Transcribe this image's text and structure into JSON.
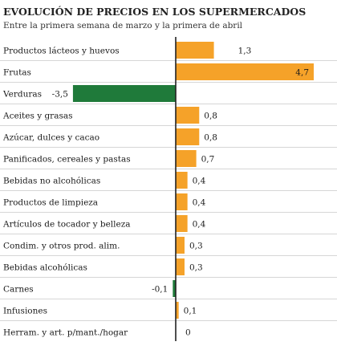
{
  "chart_data": {
    "type": "bar",
    "orientation": "horizontal",
    "title": "EVOLUCIÓN DE PRECIOS EN LOS SUPERMERCADOS",
    "subtitle": "Entre la primera semana de marzo y la primera de abril",
    "categories": [
      "Productos lácteos y huevos",
      "Frutas",
      "Verduras",
      "Aceites y grasas",
      "Azúcar, dulces y cacao",
      "Panificados, cereales y pastas",
      "Bebidas no alcohólicas",
      "Productos de limpieza",
      "Artículos de tocador y belleza",
      "Condim. y otros prod. alim.",
      "Bebidas alcohólicas",
      "Carnes",
      "Infusiones",
      "Herram. y art. p/mant./hogar"
    ],
    "values": [
      1.3,
      4.7,
      -3.5,
      0.8,
      0.8,
      0.7,
      0.4,
      0.4,
      0.4,
      0.3,
      0.3,
      -0.1,
      0.1,
      0
    ],
    "value_labels": [
      "1,3",
      "4,7",
      "-3,5",
      "0,8",
      "0,8",
      "0,7",
      "0,4",
      "0,4",
      "0,4",
      "0,3",
      "0,3",
      "-0,1",
      "0,1",
      "0"
    ],
    "highlight_category": "Verduras",
    "colors": {
      "positive": "#f5a229",
      "highlight": "#1f7a3a",
      "negative": "#1f7a3a",
      "axis": "#222222",
      "separator": "#c8c8c8",
      "label_bg": "#ffffff"
    },
    "legend": "none",
    "grid": false
  }
}
